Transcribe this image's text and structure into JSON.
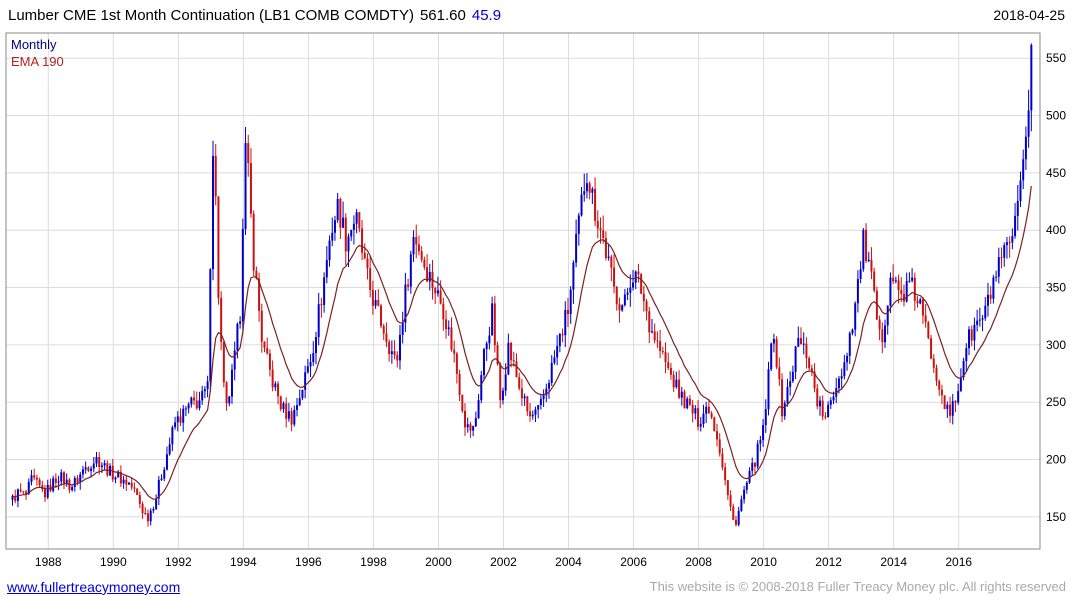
{
  "header": {
    "title_main": "Lumber CME 1st Month Continuation (LB1 COMB COMDTY)",
    "price": "561.60",
    "change": "45.9",
    "date": "2018-04-25"
  },
  "legend": {
    "series_label": "Monthly",
    "ema_label": "EMA 190"
  },
  "footer": {
    "site_link": "www.fullertreacymoney.com",
    "copyright": "This website is © 2008-2018 Fuller Treacy Money plc. All rights reserved"
  },
  "colors": {
    "up": "#0000cc",
    "down": "#cc1111",
    "ema": "#7b2222",
    "grid": "#dcdcdc",
    "axis": "#8a8a8a",
    "tick_text": "#000000"
  },
  "chart_data": {
    "type": "candlestick",
    "title": "Lumber CME 1st Month Continuation (LB1 COMB COMDTY)",
    "last_price": 561.6,
    "change": 45.9,
    "interval": "Monthly",
    "overlay": "EMA 190",
    "x_ticks": [
      1988,
      1990,
      1992,
      1994,
      1996,
      1998,
      2000,
      2002,
      2004,
      2006,
      2008,
      2010,
      2012,
      2014,
      2016
    ],
    "y_ticks": [
      150,
      200,
      250,
      300,
      350,
      400,
      450,
      500,
      550
    ],
    "xlim": [
      1986.7,
      2018.5
    ],
    "ylim": [
      122,
      572
    ],
    "grid": true,
    "legend_position": "top-left",
    "series": [
      {
        "name": "Monthly",
        "type": "candlestick",
        "anchors": [
          [
            1986.9,
            165
          ],
          [
            1987.1,
            172
          ],
          [
            1987.3,
            168
          ],
          [
            1987.5,
            183
          ],
          [
            1987.7,
            176
          ],
          [
            1987.9,
            170
          ],
          [
            1988.1,
            178
          ],
          [
            1988.3,
            186
          ],
          [
            1988.5,
            182
          ],
          [
            1988.7,
            176
          ],
          [
            1988.9,
            183
          ],
          [
            1989.1,
            192
          ],
          [
            1989.3,
            197
          ],
          [
            1989.5,
            201
          ],
          [
            1989.7,
            195
          ],
          [
            1989.9,
            189
          ],
          [
            1990.1,
            186
          ],
          [
            1990.3,
            182
          ],
          [
            1990.5,
            179
          ],
          [
            1990.7,
            170
          ],
          [
            1990.9,
            156
          ],
          [
            1991.05,
            149
          ],
          [
            1991.3,
            166
          ],
          [
            1991.6,
            200
          ],
          [
            1991.9,
            232
          ],
          [
            1992.1,
            238
          ],
          [
            1992.4,
            248
          ],
          [
            1992.7,
            252
          ],
          [
            1992.9,
            262
          ],
          [
            1993.0,
            400
          ],
          [
            1993.08,
            490
          ],
          [
            1993.25,
            330
          ],
          [
            1993.45,
            238
          ],
          [
            1993.7,
            280
          ],
          [
            1993.9,
            330
          ],
          [
            1993.98,
            410
          ],
          [
            1994.08,
            478
          ],
          [
            1994.3,
            380
          ],
          [
            1994.6,
            298
          ],
          [
            1994.9,
            268
          ],
          [
            1995.2,
            244
          ],
          [
            1995.5,
            236
          ],
          [
            1995.8,
            262
          ],
          [
            1996.1,
            292
          ],
          [
            1996.4,
            342
          ],
          [
            1996.7,
            400
          ],
          [
            1996.92,
            422
          ],
          [
            1997.15,
            392
          ],
          [
            1997.45,
            412
          ],
          [
            1997.8,
            358
          ],
          [
            1998.1,
            330
          ],
          [
            1998.4,
            308
          ],
          [
            1998.7,
            282
          ],
          [
            1998.95,
            338
          ],
          [
            1999.25,
            398
          ],
          [
            1999.55,
            372
          ],
          [
            1999.85,
            352
          ],
          [
            2000.15,
            332
          ],
          [
            2000.5,
            288
          ],
          [
            2000.85,
            228
          ],
          [
            2001.1,
            226
          ],
          [
            2001.4,
            292
          ],
          [
            2001.65,
            328
          ],
          [
            2001.9,
            252
          ],
          [
            2002.15,
            298
          ],
          [
            2002.5,
            262
          ],
          [
            2002.8,
            236
          ],
          [
            2003.1,
            242
          ],
          [
            2003.4,
            272
          ],
          [
            2003.7,
            302
          ],
          [
            2004.0,
            332
          ],
          [
            2004.3,
            402
          ],
          [
            2004.55,
            455
          ],
          [
            2004.8,
            420
          ],
          [
            2005.1,
            388
          ],
          [
            2005.4,
            348
          ],
          [
            2005.7,
            332
          ],
          [
            2005.95,
            364
          ],
          [
            2006.2,
            352
          ],
          [
            2006.5,
            318
          ],
          [
            2006.8,
            296
          ],
          [
            2007.1,
            276
          ],
          [
            2007.4,
            258
          ],
          [
            2007.7,
            246
          ],
          [
            2008.0,
            234
          ],
          [
            2008.3,
            248
          ],
          [
            2008.6,
            218
          ],
          [
            2008.9,
            168
          ],
          [
            2009.1,
            142
          ],
          [
            2009.4,
            172
          ],
          [
            2009.7,
            196
          ],
          [
            2010.0,
            226
          ],
          [
            2010.3,
            318
          ],
          [
            2010.55,
            242
          ],
          [
            2010.8,
            266
          ],
          [
            2011.05,
            304
          ],
          [
            2011.35,
            292
          ],
          [
            2011.65,
            252
          ],
          [
            2011.9,
            234
          ],
          [
            2012.2,
            264
          ],
          [
            2012.5,
            286
          ],
          [
            2012.8,
            332
          ],
          [
            2013.08,
            392
          ],
          [
            2013.3,
            358
          ],
          [
            2013.6,
            298
          ],
          [
            2013.9,
            362
          ],
          [
            2014.2,
            342
          ],
          [
            2014.5,
            352
          ],
          [
            2014.8,
            336
          ],
          [
            2015.1,
            298
          ],
          [
            2015.4,
            268
          ],
          [
            2015.7,
            236
          ],
          [
            2015.95,
            256
          ],
          [
            2016.2,
            298
          ],
          [
            2016.5,
            316
          ],
          [
            2016.8,
            326
          ],
          [
            2017.1,
            358
          ],
          [
            2017.4,
            376
          ],
          [
            2017.7,
            396
          ],
          [
            2017.95,
            440
          ],
          [
            2018.1,
            490
          ],
          [
            2018.25,
            561.6
          ]
        ]
      },
      {
        "name": "EMA 190",
        "type": "line",
        "derived_from": "Monthly"
      }
    ]
  }
}
